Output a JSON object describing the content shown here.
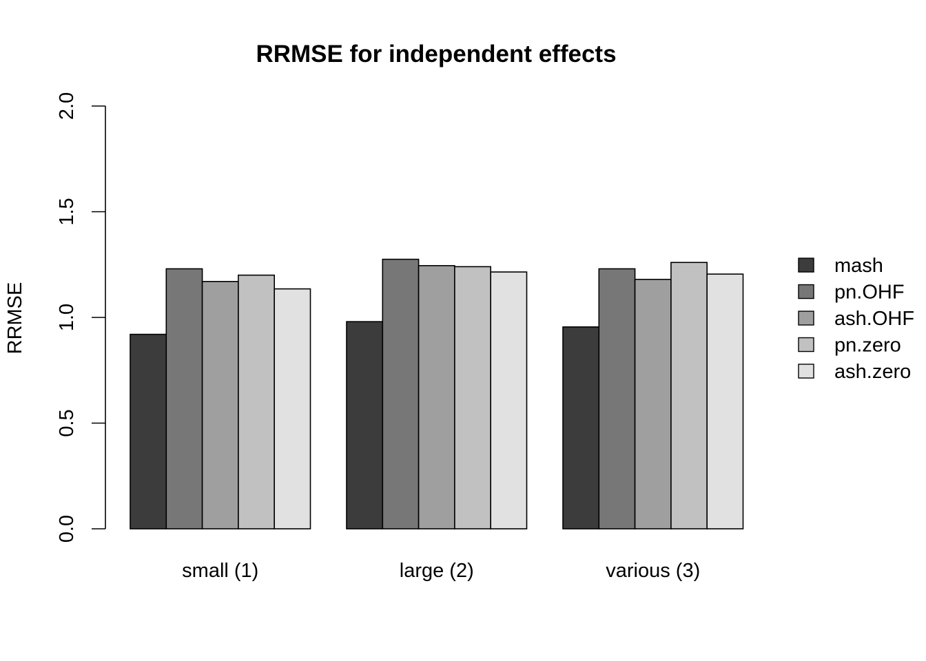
{
  "chart_data": {
    "type": "bar",
    "title": "RRMSE for independent effects",
    "xlabel": "",
    "ylabel": "RRMSE",
    "ylim": [
      0,
      2
    ],
    "yticks": [
      "0.0",
      "0.5",
      "1.0",
      "1.5",
      "2.0"
    ],
    "categories": [
      "small (1)",
      "large (2)",
      "various (3)"
    ],
    "series": [
      {
        "name": "mash",
        "color": "#3c3c3c",
        "values": [
          0.92,
          0.98,
          0.955
        ]
      },
      {
        "name": "pn.OHF",
        "color": "#777777",
        "values": [
          1.23,
          1.275,
          1.23
        ]
      },
      {
        "name": "ash.OHF",
        "color": "#9f9f9f",
        "values": [
          1.17,
          1.245,
          1.18
        ]
      },
      {
        "name": "pn.zero",
        "color": "#c1c1c1",
        "values": [
          1.2,
          1.24,
          1.26
        ]
      },
      {
        "name": "ash.zero",
        "color": "#e1e1e1",
        "values": [
          1.135,
          1.215,
          1.205
        ]
      }
    ],
    "grid": false,
    "legend_position": "right"
  }
}
